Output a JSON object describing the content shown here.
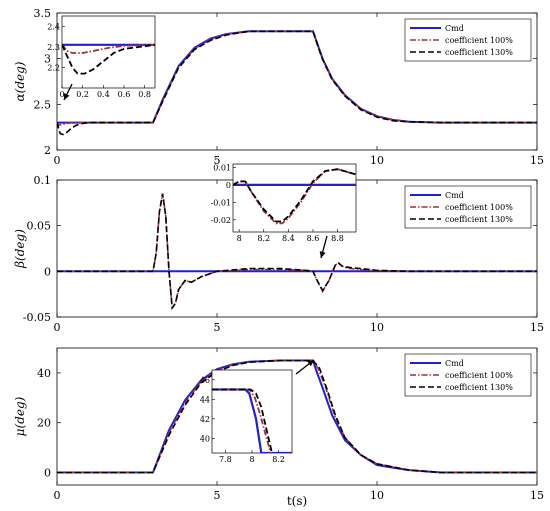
{
  "chart_data": [
    {
      "type": "line",
      "ylabel": "α(deg)",
      "xlim": [
        0,
        15
      ],
      "ylim": [
        2,
        3.5
      ],
      "xticks": [
        "0",
        "5",
        "10",
        "15"
      ],
      "yticks": [
        "2",
        "2.5",
        "3",
        "3.5"
      ],
      "legend": {
        "position": "top-right",
        "entries": [
          "Cmd",
          "coefficient 100%",
          "coefficient 130%"
        ]
      },
      "series": [
        {
          "name": "Cmd",
          "color": "#1f1fd6",
          "style": "solid",
          "x": [
            0,
            3.0,
            3.3,
            3.8,
            4.3,
            4.8,
            5.3,
            6.0,
            7.0,
            8.0,
            8.1,
            8.3,
            8.6,
            9.0,
            9.5,
            10.0,
            10.5,
            11.0,
            12.0,
            15.0
          ],
          "y": [
            2.3,
            2.3,
            2.55,
            2.92,
            3.12,
            3.22,
            3.27,
            3.3,
            3.3,
            3.3,
            3.2,
            3.0,
            2.78,
            2.6,
            2.45,
            2.37,
            2.33,
            2.31,
            2.3,
            2.3
          ]
        },
        {
          "name": "coefficient 100%",
          "color": "#a0303a",
          "style": "dashdot",
          "x": [
            0,
            0.05,
            0.15,
            0.3,
            0.5,
            0.8,
            1.2,
            3.0,
            3.3,
            3.8,
            4.3,
            4.8,
            5.3,
            6.0,
            7.0,
            8.0,
            8.1,
            8.3,
            8.6,
            9.0,
            9.5,
            10.0,
            10.5,
            11.0,
            12.0,
            15.0
          ],
          "y": [
            2.3,
            2.27,
            2.28,
            2.29,
            2.3,
            2.3,
            2.3,
            2.3,
            2.54,
            2.91,
            3.11,
            3.21,
            3.27,
            3.3,
            3.3,
            3.3,
            3.2,
            3.0,
            2.78,
            2.6,
            2.45,
            2.37,
            2.33,
            2.31,
            2.3,
            2.3
          ]
        },
        {
          "name": "coefficient 130%",
          "color": "#000000",
          "style": "dashed",
          "x": [
            0,
            0.1,
            0.2,
            0.3,
            0.45,
            0.6,
            0.8,
            1.0,
            1.5,
            3.0,
            3.3,
            3.8,
            4.3,
            4.8,
            5.3,
            6.0,
            7.0,
            8.0,
            8.1,
            8.3,
            8.6,
            9.0,
            9.5,
            10.0,
            10.5,
            11.0,
            12.0,
            15.0
          ],
          "y": [
            2.3,
            2.18,
            2.17,
            2.19,
            2.24,
            2.27,
            2.29,
            2.3,
            2.3,
            2.3,
            2.53,
            2.9,
            3.1,
            3.2,
            3.26,
            3.3,
            3.3,
            3.3,
            3.19,
            2.99,
            2.77,
            2.59,
            2.44,
            2.36,
            2.32,
            2.31,
            2.3,
            2.3
          ]
        }
      ],
      "inset": {
        "xlim": [
          0,
          0.9
        ],
        "ylim": [
          2.1,
          2.45
        ],
        "xticks": [
          "0",
          "0.2",
          "0.4",
          "0.6",
          "0.8"
        ],
        "yticks": [
          "2.2",
          "2.3",
          "2.4"
        ],
        "series": [
          {
            "name": "Cmd",
            "x": [
              0,
              0.9
            ],
            "y": [
              2.31,
              2.31
            ]
          },
          {
            "name": "coefficient 100%",
            "x": [
              0,
              0.05,
              0.1,
              0.2,
              0.3,
              0.45,
              0.6,
              0.9
            ],
            "y": [
              2.31,
              2.28,
              2.27,
              2.27,
              2.28,
              2.295,
              2.305,
              2.31
            ]
          },
          {
            "name": "coefficient 130%",
            "x": [
              0,
              0.1,
              0.15,
              0.22,
              0.3,
              0.4,
              0.5,
              0.6,
              0.75,
              0.9
            ],
            "y": [
              2.31,
              2.2,
              2.17,
              2.17,
              2.19,
              2.23,
              2.27,
              2.29,
              2.3,
              2.31
            ]
          }
        ]
      }
    },
    {
      "type": "line",
      "ylabel": "β(deg)",
      "xlim": [
        0,
        15
      ],
      "ylim": [
        -0.05,
        0.1
      ],
      "xticks": [
        "0",
        "5",
        "10",
        "15"
      ],
      "yticks": [
        "-0.05",
        "0",
        "0.05",
        "0.1"
      ],
      "legend": {
        "position": "top-right",
        "entries": [
          "Cmd",
          "coefficient 100%",
          "coefficient 130%"
        ]
      },
      "series": [
        {
          "name": "Cmd",
          "color": "#1f1fd6",
          "style": "solid",
          "x": [
            0,
            15
          ],
          "y": [
            0,
            0
          ]
        },
        {
          "name": "coefficient 100%",
          "color": "#a0303a",
          "style": "dashdot",
          "x": [
            0,
            3.0,
            3.1,
            3.2,
            3.3,
            3.4,
            3.5,
            3.6,
            3.7,
            3.8,
            4.0,
            4.2,
            4.5,
            5.0,
            6.0,
            7.0,
            7.8,
            8.0,
            8.1,
            8.3,
            8.5,
            8.7,
            8.8,
            8.9,
            9.0,
            9.2,
            9.5,
            10.0,
            11.0,
            15.0
          ],
          "y": [
            0,
            0,
            0.02,
            0.065,
            0.085,
            0.06,
            0.0,
            -0.04,
            -0.035,
            -0.02,
            -0.01,
            -0.012,
            -0.006,
            0,
            0.002,
            0.002,
            0.001,
            0,
            -0.008,
            -0.022,
            -0.01,
            0.007,
            0.009,
            0.006,
            0.004,
            0.003,
            0.002,
            0.001,
            0,
            0
          ]
        },
        {
          "name": "coefficient 130%",
          "color": "#000000",
          "style": "dashed",
          "x": [
            0,
            3.0,
            3.1,
            3.2,
            3.3,
            3.4,
            3.5,
            3.6,
            3.7,
            3.8,
            4.0,
            4.2,
            4.5,
            5.0,
            6.0,
            7.0,
            7.8,
            8.0,
            8.1,
            8.3,
            8.5,
            8.7,
            8.8,
            8.9,
            9.0,
            9.2,
            9.5,
            10.0,
            11.0,
            15.0
          ],
          "y": [
            0,
            0,
            0.02,
            0.065,
            0.085,
            0.06,
            0.0,
            -0.04,
            -0.035,
            -0.02,
            -0.01,
            -0.012,
            -0.006,
            0,
            0.003,
            0.003,
            0.001,
            0,
            -0.008,
            -0.021,
            -0.01,
            0.007,
            0.009,
            0.006,
            0.005,
            0.004,
            0.003,
            0.001,
            0,
            0
          ]
        }
      ],
      "inset": {
        "xlim": [
          7.95,
          8.95
        ],
        "ylim": [
          -0.027,
          0.012
        ],
        "xticks": [
          "8",
          "8.2",
          "8.4",
          "8.6",
          "8.8"
        ],
        "yticks": [
          "0.01",
          "0",
          "-0.01",
          "-0.02"
        ],
        "series": [
          {
            "name": "Cmd",
            "x": [
              7.95,
              8.95
            ],
            "y": [
              0,
              0
            ]
          },
          {
            "name": "coefficient 100%",
            "x": [
              7.95,
              8.0,
              8.05,
              8.1,
              8.2,
              8.3,
              8.35,
              8.4,
              8.5,
              8.6,
              8.7,
              8.8,
              8.9,
              8.95
            ],
            "y": [
              0,
              0.002,
              0.002,
              -0.004,
              -0.015,
              -0.022,
              -0.022,
              -0.019,
              -0.01,
              0.001,
              0.008,
              0.009,
              0.007,
              0.006
            ]
          },
          {
            "name": "coefficient 130%",
            "x": [
              7.95,
              8.0,
              8.05,
              8.1,
              8.2,
              8.3,
              8.35,
              8.4,
              8.5,
              8.6,
              8.7,
              8.8,
              8.9,
              8.95
            ],
            "y": [
              0,
              0.002,
              0.002,
              -0.004,
              -0.014,
              -0.021,
              -0.021,
              -0.018,
              -0.009,
              0.002,
              0.008,
              0.009,
              0.007,
              0.006
            ]
          }
        ]
      }
    },
    {
      "type": "line",
      "ylabel": "μ(deg)",
      "xlabel": "t(s)",
      "xlim": [
        0,
        15
      ],
      "ylim": [
        -5,
        50
      ],
      "xticks": [
        "0",
        "5",
        "10",
        "15"
      ],
      "yticks": [
        "0",
        "20",
        "40"
      ],
      "legend": {
        "position": "top-right",
        "entries": [
          "Cmd",
          "coefficient 100%",
          "coefficient 130%"
        ]
      },
      "series": [
        {
          "name": "Cmd",
          "color": "#1f1fd6",
          "style": "solid",
          "x": [
            0,
            3.0,
            3.5,
            4.0,
            4.5,
            5.0,
            5.5,
            6.0,
            7.0,
            8.0,
            8.1,
            8.3,
            8.6,
            9.0,
            9.5,
            10.0,
            11.0,
            12.0,
            15.0
          ],
          "y": [
            0,
            0,
            17,
            29,
            37,
            41.5,
            43.5,
            44.5,
            45,
            45,
            41,
            34,
            23,
            13,
            7,
            3,
            1,
            0,
            0
          ]
        },
        {
          "name": "coefficient 100%",
          "color": "#a0303a",
          "style": "dashdot",
          "x": [
            0,
            3.0,
            3.5,
            4.0,
            4.5,
            5.0,
            5.5,
            6.0,
            7.0,
            8.0,
            8.15,
            8.4,
            8.7,
            9.0,
            9.5,
            10.0,
            11.0,
            12.0,
            15.0
          ],
          "y": [
            0,
            0,
            16,
            28,
            36.5,
            41,
            43.3,
            44.4,
            45,
            45,
            42,
            34,
            22,
            14,
            7,
            3.5,
            1,
            0,
            0
          ]
        },
        {
          "name": "coefficient 130%",
          "color": "#000000",
          "style": "dashed",
          "x": [
            0,
            3.0,
            3.5,
            4.0,
            4.5,
            5.0,
            5.5,
            6.0,
            7.0,
            8.0,
            8.2,
            8.45,
            8.7,
            9.0,
            9.5,
            10.0,
            11.0,
            12.0,
            15.0
          ],
          "y": [
            0,
            0,
            15,
            27,
            36,
            40.5,
            43,
            44.3,
            45,
            45,
            42,
            33,
            23,
            14,
            7,
            3.5,
            1,
            0,
            0
          ]
        }
      ],
      "inset": {
        "xlim": [
          7.7,
          8.3
        ],
        "ylim": [
          38.5,
          47
        ],
        "xticks": [
          "7.8",
          "8",
          "8.2"
        ],
        "yticks": [
          "40",
          "42",
          "44",
          "46"
        ],
        "series": [
          {
            "name": "Cmd",
            "x": [
              7.7,
              7.95,
              7.98,
              8.03,
              8.07,
              8.3
            ],
            "y": [
              45,
              45,
              44.6,
              42,
              38.5,
              38.5
            ]
          },
          {
            "name": "coefficient 100%",
            "x": [
              7.7,
              7.98,
              8.02,
              8.06,
              8.1,
              8.14
            ],
            "y": [
              45,
              45,
              44.2,
              42.5,
              40.5,
              38.5
            ]
          },
          {
            "name": "coefficient 130%",
            "x": [
              7.7,
              7.99,
              8.03,
              8.07,
              8.11,
              8.15
            ],
            "y": [
              45,
              45,
              44.6,
              43.2,
              40.8,
              38.5
            ]
          }
        ]
      }
    }
  ]
}
